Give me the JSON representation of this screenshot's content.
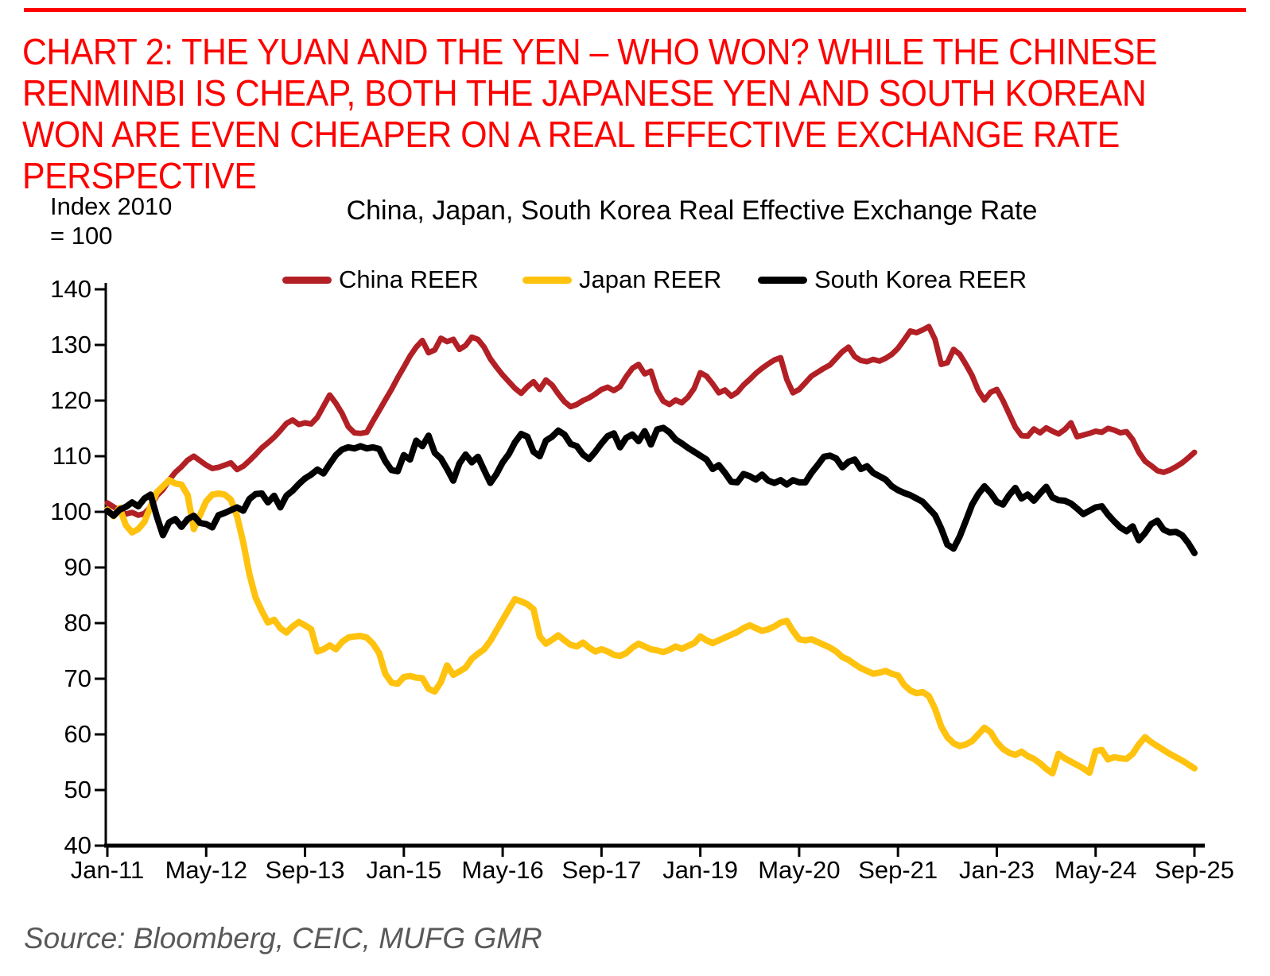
{
  "heading": {
    "text": "CHART 2: THE YUAN AND THE YEN – WHO WON? WHILE THE CHINESE RENMINBI IS CHEAP, BOTH THE JAPANESE YEN AND SOUTH KOREAN WON ARE EVEN CHEAPER ON A REAL EFFECTIVE EXCHANGE RATE PERSPECTIVE",
    "color": "#fe0000"
  },
  "axis_note_line1": "Index 2010",
  "axis_note_line2": "= 100",
  "source": {
    "text": "Source: Bloomberg, CEIC, MUFG GMR",
    "color": "#595959"
  },
  "chart_data": {
    "type": "line",
    "title": "China, Japan, South Korea Real Effective Exchange Rate",
    "ylabel": "Index 2010 = 100",
    "ylim": [
      40,
      140
    ],
    "ytick_step": 10,
    "yticks": [
      140,
      130,
      120,
      110,
      100,
      90,
      80,
      70,
      60,
      50,
      40
    ],
    "grid": false,
    "legend_position": "top",
    "x_start_label": "Jan-11",
    "x_end_label": "Sep-25",
    "x_tick_labels": [
      "Jan-11",
      "May-12",
      "Sep-13",
      "Jan-15",
      "May-16",
      "Sep-17",
      "Jan-19",
      "May-20",
      "Sep-21",
      "Jan-23",
      "May-24",
      "Sep-25"
    ],
    "x_tick_interval_months": 16,
    "months_total": 177,
    "series": [
      {
        "name": "China REER",
        "color": "#b22025",
        "stroke_width": 7,
        "values": [
          101.6,
          100.9,
          100.2,
          99.6,
          99.9,
          99.4,
          99.7,
          100.9,
          102.9,
          104.0,
          105.7,
          107.1,
          108.1,
          109.3,
          110.0,
          109.2,
          108.4,
          107.8,
          108.0,
          108.4,
          108.8,
          107.6,
          108.2,
          109.2,
          110.3,
          111.5,
          112.4,
          113.4,
          114.6,
          115.9,
          116.5,
          115.7,
          116.0,
          115.8,
          117.0,
          119.0,
          121.0,
          119.5,
          117.7,
          115.3,
          114.2,
          114.1,
          114.3,
          116.3,
          118.2,
          120.1,
          122.0,
          124.1,
          126.0,
          128.0,
          129.6,
          130.8,
          128.6,
          129.1,
          131.2,
          130.6,
          131.0,
          129.2,
          129.9,
          131.4,
          131.0,
          129.6,
          127.5,
          126.0,
          124.6,
          123.4,
          122.2,
          121.3,
          122.5,
          123.4,
          122.0,
          123.7,
          122.8,
          121.2,
          119.8,
          118.9,
          119.3,
          120.0,
          120.5,
          121.2,
          122.0,
          122.4,
          121.8,
          122.5,
          124.3,
          125.8,
          126.5,
          124.8,
          125.3,
          121.8,
          119.9,
          119.3,
          120.1,
          119.6,
          120.6,
          122.2,
          125.0,
          124.4,
          123.0,
          121.4,
          121.9,
          120.8,
          121.5,
          122.8,
          123.8,
          124.9,
          125.8,
          126.6,
          127.3,
          127.7,
          123.8,
          121.4,
          122.0,
          123.2,
          124.4,
          125.1,
          125.8,
          126.4,
          127.6,
          128.8,
          129.6,
          127.9,
          127.2,
          127.0,
          127.4,
          127.1,
          127.6,
          128.3,
          129.4,
          130.9,
          132.5,
          132.2,
          132.7,
          133.3,
          131.0,
          126.5,
          126.8,
          129.2,
          128.3,
          126.5,
          124.5,
          121.8,
          120.1,
          121.5,
          122.0,
          120.0,
          117.6,
          115.2,
          113.7,
          113.6,
          114.9,
          114.2,
          115.1,
          114.5,
          114.0,
          114.8,
          116.0,
          113.5,
          113.8,
          114.1,
          114.5,
          114.3,
          115.0,
          114.7,
          114.2,
          114.4,
          113.0,
          110.7,
          109.1,
          108.3,
          107.4,
          107.1,
          107.5,
          108.1,
          108.8,
          109.7,
          110.7
        ]
      },
      {
        "name": "Japan REER",
        "color": "#ffc20e",
        "stroke_width": 8,
        "values": [
          100.4,
          99.2,
          100.7,
          97.6,
          96.3,
          96.9,
          98.2,
          101.0,
          103.5,
          104.6,
          105.7,
          105.1,
          104.9,
          103.0,
          96.9,
          99.4,
          101.9,
          103.1,
          103.3,
          103.1,
          102.2,
          99.2,
          94.5,
          88.8,
          84.6,
          82.2,
          80.1,
          80.6,
          79.1,
          78.3,
          79.4,
          80.2,
          79.6,
          78.9,
          74.9,
          75.3,
          76.0,
          75.3,
          76.6,
          77.4,
          77.6,
          77.7,
          77.4,
          76.3,
          74.6,
          70.9,
          69.3,
          69.1,
          70.3,
          70.5,
          70.2,
          70.1,
          68.2,
          67.7,
          69.4,
          72.4,
          70.7,
          71.3,
          72.0,
          73.6,
          74.5,
          75.3,
          76.8,
          78.7,
          80.6,
          82.5,
          84.3,
          83.9,
          83.4,
          82.5,
          77.6,
          76.3,
          77.0,
          77.8,
          76.9,
          76.1,
          75.8,
          76.5,
          75.6,
          74.9,
          75.3,
          74.9,
          74.3,
          74.1,
          74.6,
          75.6,
          76.3,
          75.8,
          75.3,
          75.1,
          74.8,
          75.2,
          75.8,
          75.4,
          75.9,
          76.4,
          77.6,
          76.9,
          76.4,
          76.9,
          77.4,
          77.9,
          78.4,
          79.1,
          79.6,
          79.1,
          78.6,
          78.9,
          79.4,
          80.1,
          80.4,
          78.6,
          77.1,
          76.9,
          77.1,
          76.6,
          76.1,
          75.6,
          74.9,
          73.9,
          73.4,
          72.6,
          71.9,
          71.4,
          70.9,
          71.1,
          71.4,
          70.9,
          70.6,
          68.9,
          67.9,
          67.4,
          67.6,
          66.9,
          64.6,
          61.4,
          59.5,
          58.4,
          57.9,
          58.2,
          58.8,
          60.0,
          61.2,
          60.4,
          58.6,
          57.4,
          56.7,
          56.3,
          56.9,
          56.1,
          55.6,
          54.8,
          53.8,
          53.0,
          56.5,
          55.7,
          55.1,
          54.5,
          53.9,
          53.1,
          57.0,
          57.2,
          55.5,
          55.9,
          55.7,
          55.6,
          56.5,
          58.2,
          59.5,
          58.6,
          57.9,
          57.2,
          56.5,
          55.9,
          55.3,
          54.6,
          53.9
        ]
      },
      {
        "name": "South Korea REER",
        "color": "#000000",
        "stroke_width": 8,
        "values": [
          100.2,
          99.3,
          100.4,
          100.9,
          101.7,
          101.0,
          102.4,
          103.1,
          99.2,
          95.8,
          98.1,
          98.7,
          97.3,
          98.7,
          99.3,
          98.0,
          97.8,
          97.2,
          99.4,
          99.8,
          100.3,
          100.8,
          100.2,
          102.3,
          103.2,
          103.3,
          101.7,
          102.9,
          100.8,
          102.9,
          103.8,
          105.0,
          106.0,
          106.7,
          107.6,
          106.9,
          108.6,
          110.2,
          111.2,
          111.6,
          111.4,
          111.8,
          111.4,
          111.6,
          111.3,
          109.1,
          107.5,
          107.3,
          110.2,
          109.4,
          112.8,
          111.8,
          113.7,
          110.6,
          109.6,
          107.7,
          105.6,
          108.7,
          110.3,
          108.9,
          109.9,
          107.5,
          105.2,
          106.8,
          108.9,
          110.4,
          112.5,
          114.0,
          113.5,
          110.8,
          110.0,
          112.8,
          113.5,
          114.6,
          113.9,
          112.2,
          111.8,
          110.3,
          109.5,
          110.8,
          112.3,
          113.6,
          114.1,
          111.6,
          113.3,
          113.9,
          112.7,
          114.5,
          112.1,
          114.8,
          115.1,
          114.3,
          113.0,
          112.3,
          111.5,
          110.8,
          110.1,
          109.4,
          107.7,
          108.4,
          107.0,
          105.4,
          105.3,
          106.8,
          106.4,
          105.8,
          106.7,
          105.6,
          105.2,
          105.7,
          104.9,
          105.7,
          105.3,
          105.3,
          107.0,
          108.4,
          109.9,
          110.1,
          109.6,
          108.0,
          109.0,
          109.4,
          107.7,
          108.2,
          107.0,
          106.4,
          105.8,
          104.6,
          103.9,
          103.4,
          103.0,
          102.4,
          101.8,
          100.6,
          99.4,
          97.0,
          94.1,
          93.4,
          95.6,
          98.4,
          101.3,
          103.2,
          104.6,
          103.4,
          101.8,
          101.3,
          103.0,
          104.3,
          102.4,
          103.1,
          102.0,
          103.3,
          104.5,
          102.6,
          102.1,
          102.0,
          101.5,
          100.6,
          99.6,
          100.2,
          100.8,
          101.0,
          99.5,
          98.3,
          97.2,
          96.5,
          97.4,
          94.9,
          96.2,
          97.8,
          98.4,
          96.8,
          96.3,
          96.4,
          95.8,
          94.4,
          92.6
        ]
      }
    ]
  }
}
